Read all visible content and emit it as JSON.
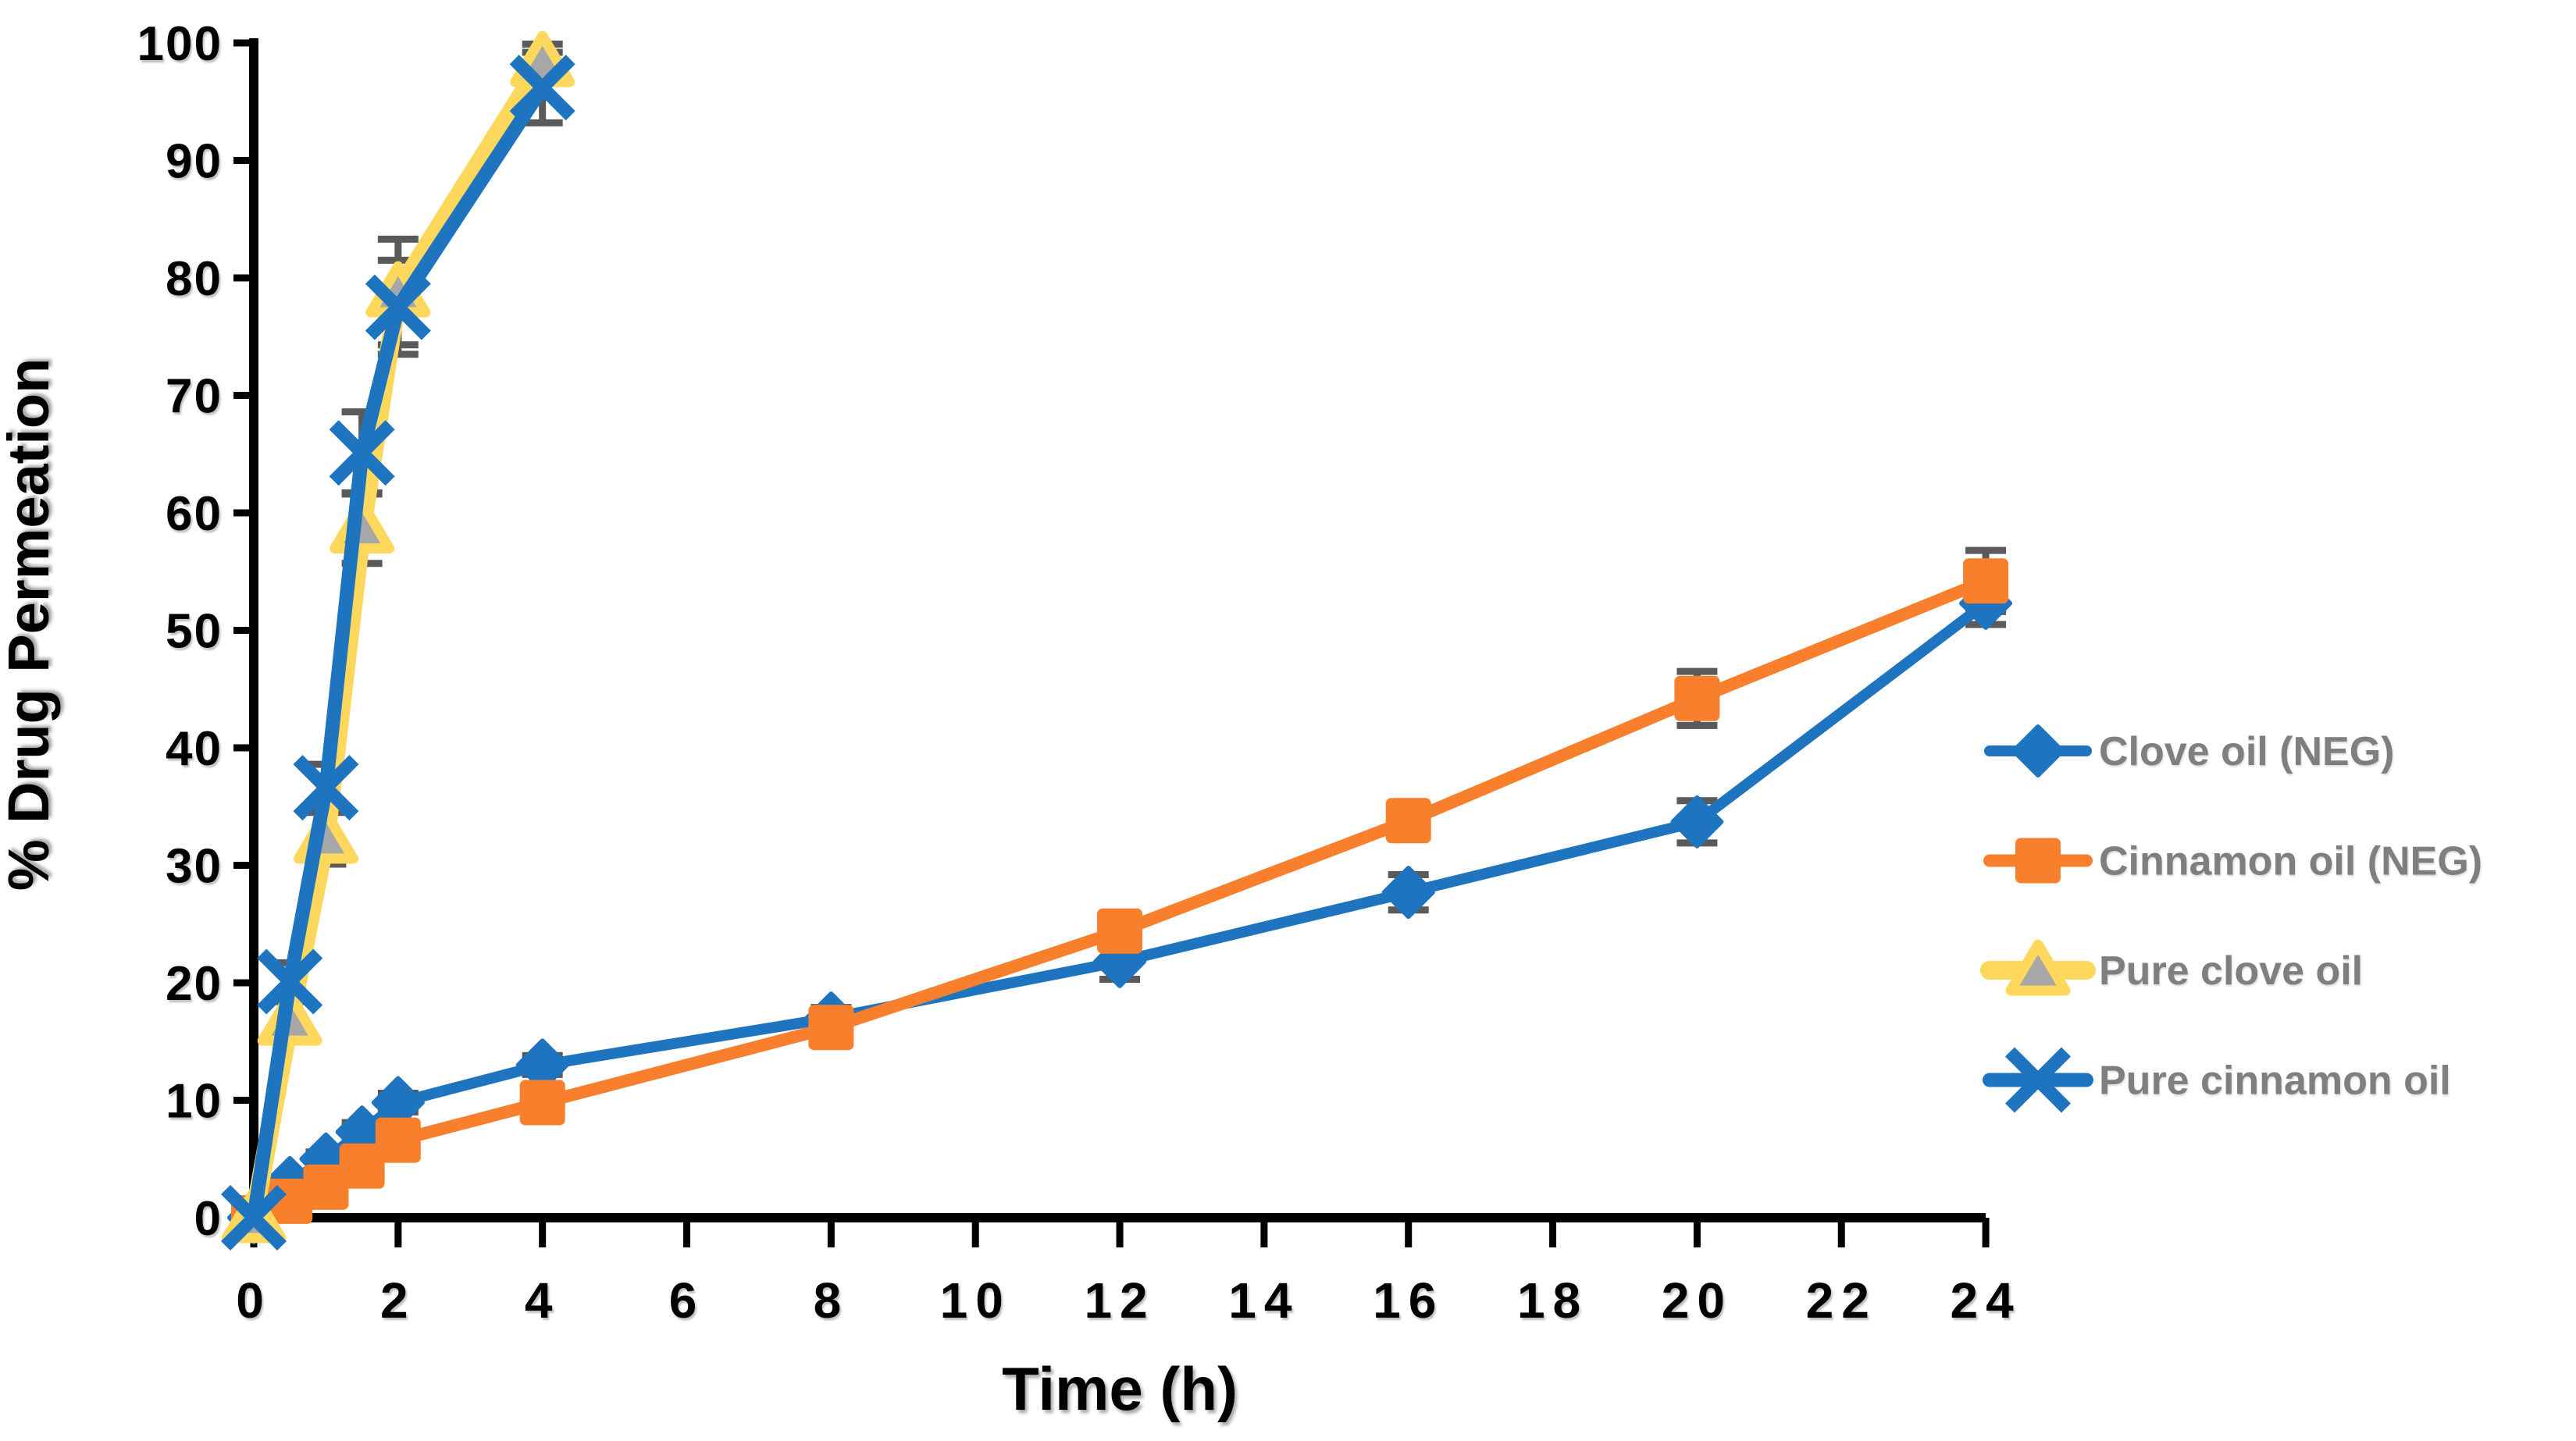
{
  "chart_data": {
    "type": "line",
    "title": "",
    "xlabel": "Time (h)",
    "ylabel": "% Drug Permeation",
    "xlim": [
      0,
      24
    ],
    "ylim": [
      0,
      100
    ],
    "xticks": [
      0,
      2,
      4,
      6,
      8,
      10,
      12,
      14,
      16,
      18,
      20,
      22,
      24
    ],
    "yticks": [
      0,
      10,
      20,
      30,
      40,
      50,
      60,
      70,
      80,
      90,
      100
    ],
    "grid": false,
    "legend_position": "right-middle",
    "axis_color": "#000000",
    "tick_label_color": "#000000",
    "error_bar_color": "#5A5A5A",
    "legend_text_color": "#7F7F7F",
    "series": [
      {
        "id": "clove-oil-neg",
        "name": "Clove oil (NEG)",
        "color": "#1F74BF",
        "marker": "diamond",
        "marker_fill": "#1F74BF",
        "line_width": 14,
        "x": [
          0,
          0.5,
          1,
          1.5,
          2,
          4,
          8,
          12,
          16,
          20,
          24
        ],
        "y": [
          0,
          3.0,
          5.0,
          7.3,
          9.8,
          13.0,
          17.0,
          21.8,
          27.7,
          33.7,
          52.3
        ],
        "err": [
          0,
          0.5,
          0.6,
          0.8,
          0.8,
          0.8,
          0.9,
          1.5,
          1.5,
          1.8,
          1.8
        ]
      },
      {
        "id": "cinnamon-oil-neg",
        "name": "Cinnamon oil (NEG)",
        "color": "#F87F2C",
        "marker": "square",
        "marker_fill": "#F87F2C",
        "line_width": 16,
        "x": [
          0,
          0.5,
          1,
          1.5,
          2,
          4,
          8,
          12,
          16,
          20,
          24
        ],
        "y": [
          0,
          1.4,
          2.6,
          4.4,
          6.6,
          9.8,
          16.2,
          24.4,
          33.8,
          44.2,
          54.2
        ],
        "err": [
          0,
          0.4,
          0.5,
          0.6,
          0.8,
          0.8,
          0.9,
          1.0,
          1.2,
          2.3,
          2.6
        ]
      },
      {
        "id": "pure-clove-oil",
        "name": "Pure clove oil",
        "color": "#FDD85D",
        "marker": "triangle",
        "marker_fill": "#A7A7A7",
        "line_width": 24,
        "x": [
          0,
          0.5,
          1,
          1.5,
          2,
          4
        ],
        "y": [
          0,
          16.8,
          32.3,
          58.7,
          78.8,
          98.4
        ],
        "err": [
          0,
          1.6,
          2.2,
          3.0,
          4.5,
          1.5
        ]
      },
      {
        "id": "pure-cinnamon-oil",
        "name": "Pure cinnamon oil",
        "color": "#1F74BF",
        "marker": "x",
        "marker_fill": "#1F74BF",
        "line_width": 18,
        "x": [
          0,
          0.5,
          1,
          1.5,
          2,
          4
        ],
        "y": [
          0,
          20.1,
          36.6,
          65.1,
          77.5,
          96.2
        ],
        "err": [
          0,
          1.6,
          2.0,
          3.5,
          4.0,
          3.0
        ]
      }
    ]
  }
}
